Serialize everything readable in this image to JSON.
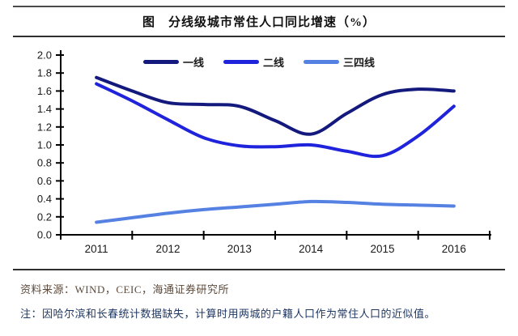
{
  "title": "图　分线级城市常住人口同比增速（%）",
  "footer": {
    "source": "资料来源：WIND，CEIC，海通证券研究所",
    "note": "注：因哈尔滨和长春统计数据缺失，计算时用两城的户籍人口作为常住人口的近似值。"
  },
  "colors": {
    "rule": "#2f2f2f",
    "title_text": "#111111",
    "axis": "#000000",
    "tick_label": "#1a1a1a",
    "source_text": "#5d4a3b",
    "note_text": "#1f3864"
  },
  "chart_data": {
    "type": "line",
    "title": "分线级城市常住人口同比增速（%）",
    "x": [
      2011,
      2011.5,
      2012,
      2012.5,
      2013,
      2013.5,
      2014,
      2014.5,
      2015,
      2015.5,
      2016
    ],
    "x_tick_labels": [
      "2011",
      "2012",
      "2013",
      "2014",
      "2015",
      "2016"
    ],
    "ylim": [
      0.0,
      2.0
    ],
    "ytick_step": 0.2,
    "grid": false,
    "legend_position": "top-center",
    "line_smoothing": true,
    "series": [
      {
        "key": "tier1",
        "name": "一线",
        "color": "#141A7D",
        "values": [
          1.75,
          1.6,
          1.47,
          1.45,
          1.43,
          1.27,
          1.12,
          1.35,
          1.56,
          1.62,
          1.6
        ]
      },
      {
        "key": "tier2",
        "name": "二线",
        "color": "#1F23DB",
        "values": [
          1.68,
          1.49,
          1.28,
          1.08,
          0.99,
          0.98,
          1.0,
          0.93,
          0.88,
          1.1,
          1.43
        ]
      },
      {
        "key": "tier34",
        "name": "三四线",
        "color": "#5581E3",
        "values": [
          0.14,
          0.19,
          0.24,
          0.28,
          0.31,
          0.34,
          0.37,
          0.36,
          0.34,
          0.33,
          0.32
        ]
      }
    ]
  }
}
